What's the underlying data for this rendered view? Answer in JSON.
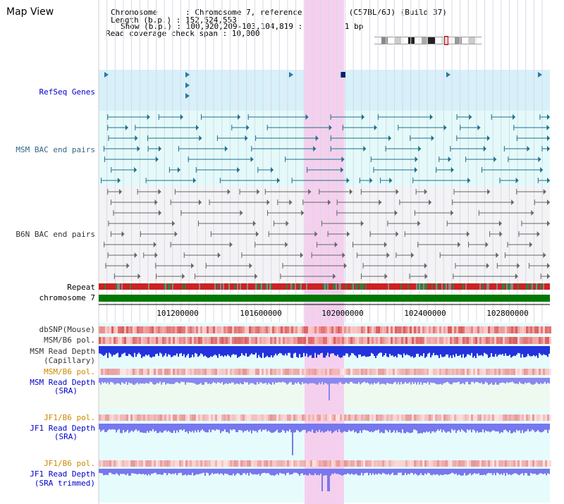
{
  "page": {
    "title": "Map View"
  },
  "info": {
    "chromosome_line": "Chromosome      : Chromosome 7, reference assembly (C57BL/6J) (Build 37)",
    "length_line": "Length (b.p.) : 152,524,553",
    "show_line": "Show (b.p.) : 100,920,209-103,104,819 : 2,184,611 bp",
    "coverage_line": "Read coverage check span : 10,000"
  },
  "tracks": {
    "refseq": "RefSeq Genes",
    "msm_bac": "MSM BAC end pairs",
    "b6n_bac": "B6N BAC end pairs",
    "repeat": "Repeat",
    "chromosome": "chromosome 7",
    "dbsnp": "dbSNP(Mouse)",
    "msm_pol1": "MSM/B6 pol.",
    "msm_depth_cap_1": "MSM Read Depth",
    "msm_depth_cap_2": "(Capillary)",
    "msm_pol2": "MSM/B6 pol.",
    "msm_depth_sra_1": "MSM Read Depth",
    "msm_depth_sra_2": "(SRA)",
    "jf1_pol1": "JF1/B6 pol.",
    "jf1_depth_sra_1": "JF1 Read Depth",
    "jf1_depth_sra_2": "(SRA)",
    "jf1_pol2": "JF1/B6 pol.",
    "jf1_depth_trim_1": "JF1 Read Depth",
    "jf1_depth_trim_2": "(SRA trimmed)"
  },
  "axis": {
    "ticks": [
      "101200000",
      "101600000",
      "102000000",
      "102400000",
      "102800000"
    ]
  },
  "colors": {
    "highlight": "#f5d0ee",
    "refseq_bg": "#d8f0fa",
    "msm_bg": "#e4fafa",
    "b6n_bg": "#f3f3f6",
    "lower_bg": "#e6fcfc",
    "label_blue": "#0000cc",
    "label_teal": "#336688",
    "label_orange": "#cc8800",
    "label_gray": "#333333",
    "chrom_green": "#007700"
  }
}
